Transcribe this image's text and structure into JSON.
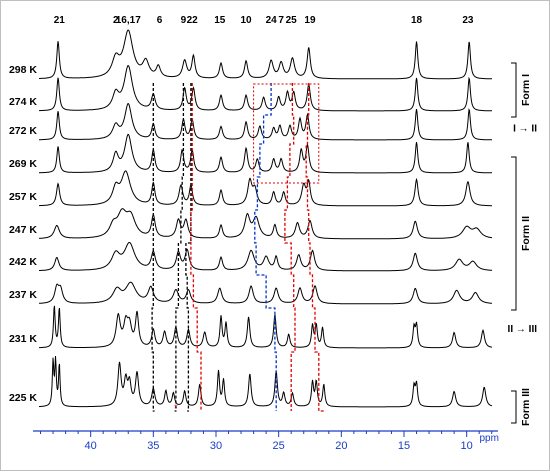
{
  "chart_data": {
    "type": "line",
    "title": "",
    "xlabel": "ppm",
    "xlim": [
      44.6,
      7.5
    ],
    "x_ticks": [
      40,
      35,
      30,
      25,
      20,
      15,
      10
    ],
    "x_tick_labels": [
      "40",
      "35",
      "30",
      "25",
      "20",
      "15",
      "10"
    ],
    "grid": false,
    "legend": "none",
    "peak_labels": [
      {
        "text": "21",
        "ppm": 42.5
      },
      {
        "text": "2",
        "ppm": 38.0
      },
      {
        "text": "16,17",
        "ppm": 37.0
      },
      {
        "text": "6",
        "ppm": 34.5
      },
      {
        "text": "9",
        "ppm": 32.6
      },
      {
        "text": "22",
        "ppm": 31.9
      },
      {
        "text": "15",
        "ppm": 29.7
      },
      {
        "text": "10",
        "ppm": 27.6
      },
      {
        "text": "24",
        "ppm": 25.6
      },
      {
        "text": "7",
        "ppm": 24.8
      },
      {
        "text": "25",
        "ppm": 24.0
      },
      {
        "text": "19",
        "ppm": 22.5
      },
      {
        "text": "18",
        "ppm": 14.0
      },
      {
        "text": "23",
        "ppm": 9.9
      }
    ],
    "series": [
      {
        "name": "298 K",
        "peaks": [
          [
            42.6,
            0.85,
            0.12
          ],
          [
            38.0,
            0.4,
            0.35
          ],
          [
            37.0,
            1.05,
            0.45
          ],
          [
            35.6,
            0.35,
            0.3
          ],
          [
            34.6,
            0.25,
            0.2
          ],
          [
            32.5,
            0.4,
            0.2
          ],
          [
            31.8,
            0.5,
            0.15
          ],
          [
            29.6,
            0.35,
            0.15
          ],
          [
            27.6,
            0.4,
            0.15
          ],
          [
            25.6,
            0.4,
            0.2
          ],
          [
            24.8,
            0.35,
            0.2
          ],
          [
            23.9,
            0.45,
            0.2
          ],
          [
            22.6,
            0.7,
            0.15
          ],
          [
            14.0,
            0.85,
            0.12
          ],
          [
            9.8,
            0.85,
            0.12
          ]
        ]
      },
      {
        "name": "274 K",
        "peaks": [
          [
            42.6,
            0.75,
            0.12
          ],
          [
            38.0,
            0.35,
            0.3
          ],
          [
            37.0,
            1.0,
            0.4
          ],
          [
            35.0,
            0.35,
            0.18
          ],
          [
            32.5,
            0.5,
            0.15
          ],
          [
            31.8,
            0.5,
            0.15
          ],
          [
            29.6,
            0.35,
            0.15
          ],
          [
            27.6,
            0.35,
            0.15
          ],
          [
            26.2,
            0.3,
            0.15
          ],
          [
            25.0,
            0.3,
            0.15
          ],
          [
            24.3,
            0.4,
            0.15
          ],
          [
            23.8,
            0.4,
            0.15
          ],
          [
            22.6,
            0.6,
            0.15
          ],
          [
            14.0,
            0.75,
            0.12
          ],
          [
            9.8,
            0.75,
            0.12
          ]
        ]
      },
      {
        "name": "272 K",
        "peaks": [
          [
            42.6,
            0.65,
            0.12
          ],
          [
            38.0,
            0.3,
            0.3
          ],
          [
            37.0,
            0.8,
            0.35
          ],
          [
            35.0,
            0.35,
            0.15
          ],
          [
            32.6,
            0.45,
            0.15
          ],
          [
            31.9,
            0.45,
            0.15
          ],
          [
            29.6,
            0.3,
            0.15
          ],
          [
            27.6,
            0.4,
            0.15
          ],
          [
            26.5,
            0.3,
            0.15
          ],
          [
            25.4,
            0.25,
            0.15
          ],
          [
            24.9,
            0.3,
            0.15
          ],
          [
            24.1,
            0.3,
            0.15
          ],
          [
            23.3,
            0.45,
            0.15
          ],
          [
            22.7,
            0.55,
            0.15
          ],
          [
            14.0,
            0.7,
            0.12
          ],
          [
            9.8,
            0.7,
            0.12
          ]
        ]
      },
      {
        "name": "269 K",
        "peaks": [
          [
            42.6,
            0.6,
            0.12
          ],
          [
            38.0,
            0.4,
            0.25
          ],
          [
            37.0,
            0.85,
            0.35
          ],
          [
            35.0,
            0.5,
            0.15
          ],
          [
            32.7,
            0.5,
            0.15
          ],
          [
            31.9,
            0.5,
            0.15
          ],
          [
            29.6,
            0.35,
            0.15
          ],
          [
            27.6,
            0.55,
            0.15
          ],
          [
            26.7,
            0.3,
            0.15
          ],
          [
            25.4,
            0.3,
            0.15
          ],
          [
            24.8,
            0.3,
            0.15
          ],
          [
            23.2,
            0.5,
            0.15
          ],
          [
            22.7,
            0.6,
            0.15
          ],
          [
            14.0,
            0.7,
            0.12
          ],
          [
            9.9,
            0.7,
            0.12
          ]
        ]
      },
      {
        "name": "257 K",
        "peaks": [
          [
            42.6,
            0.5,
            0.15
          ],
          [
            38.0,
            0.35,
            0.3
          ],
          [
            37.2,
            0.75,
            0.45
          ],
          [
            35.0,
            0.5,
            0.15
          ],
          [
            32.8,
            0.45,
            0.18
          ],
          [
            32.0,
            0.45,
            0.15
          ],
          [
            29.6,
            0.35,
            0.15
          ],
          [
            27.3,
            0.55,
            0.2
          ],
          [
            26.9,
            0.35,
            0.2
          ],
          [
            25.4,
            0.3,
            0.15
          ],
          [
            24.6,
            0.3,
            0.15
          ],
          [
            23.0,
            0.45,
            0.2
          ],
          [
            22.6,
            0.5,
            0.15
          ],
          [
            14.0,
            0.6,
            0.15
          ],
          [
            9.9,
            0.55,
            0.2
          ]
        ]
      },
      {
        "name": "247 K",
        "peaks": [
          [
            42.7,
            0.3,
            0.25
          ],
          [
            38.2,
            0.25,
            0.35
          ],
          [
            37.5,
            0.5,
            0.45
          ],
          [
            36.8,
            0.45,
            0.45
          ],
          [
            35.0,
            0.5,
            0.18
          ],
          [
            33.0,
            0.4,
            0.2
          ],
          [
            32.4,
            0.4,
            0.2
          ],
          [
            29.6,
            0.3,
            0.15
          ],
          [
            27.5,
            0.5,
            0.25
          ],
          [
            26.8,
            0.45,
            0.3
          ],
          [
            25.3,
            0.3,
            0.15
          ],
          [
            23.5,
            0.35,
            0.2
          ],
          [
            22.5,
            0.4,
            0.2
          ],
          [
            14.1,
            0.4,
            0.2
          ],
          [
            10.0,
            0.25,
            0.4
          ],
          [
            9.2,
            0.2,
            0.4
          ]
        ]
      },
      {
        "name": "242 K",
        "peaks": [
          [
            42.7,
            0.3,
            0.2
          ],
          [
            38.0,
            0.35,
            0.4
          ],
          [
            36.9,
            0.6,
            0.5
          ],
          [
            35.0,
            0.4,
            0.2
          ],
          [
            33.0,
            0.4,
            0.2
          ],
          [
            32.3,
            0.45,
            0.2
          ],
          [
            29.6,
            0.3,
            0.15
          ],
          [
            27.2,
            0.45,
            0.3
          ],
          [
            26.0,
            0.3,
            0.25
          ],
          [
            25.2,
            0.3,
            0.15
          ],
          [
            23.4,
            0.35,
            0.2
          ],
          [
            22.3,
            0.45,
            0.2
          ],
          [
            14.1,
            0.4,
            0.2
          ],
          [
            10.6,
            0.25,
            0.35
          ],
          [
            9.5,
            0.2,
            0.35
          ]
        ]
      },
      {
        "name": "237 K",
        "peaks": [
          [
            42.7,
            0.35,
            0.2
          ],
          [
            42.4,
            0.3,
            0.2
          ],
          [
            37.9,
            0.3,
            0.4
          ],
          [
            36.8,
            0.45,
            0.5
          ],
          [
            35.2,
            0.35,
            0.25
          ],
          [
            33.2,
            0.3,
            0.25
          ],
          [
            32.2,
            0.3,
            0.2
          ],
          [
            29.7,
            0.35,
            0.2
          ],
          [
            27.2,
            0.4,
            0.2
          ],
          [
            25.2,
            0.35,
            0.2
          ],
          [
            23.3,
            0.35,
            0.2
          ],
          [
            22.1,
            0.4,
            0.2
          ],
          [
            14.1,
            0.35,
            0.2
          ],
          [
            10.8,
            0.3,
            0.3
          ],
          [
            9.3,
            0.25,
            0.3
          ]
        ]
      },
      {
        "name": "231 K",
        "peaks": [
          [
            42.9,
            0.95,
            0.08
          ],
          [
            42.5,
            0.9,
            0.08
          ],
          [
            37.8,
            0.7,
            0.2
          ],
          [
            37.2,
            0.5,
            0.2
          ],
          [
            36.9,
            0.45,
            0.2
          ],
          [
            36.3,
            0.75,
            0.15
          ],
          [
            35.0,
            0.4,
            0.15
          ],
          [
            34.1,
            0.35,
            0.15
          ],
          [
            33.2,
            0.45,
            0.15
          ],
          [
            32.2,
            0.4,
            0.15
          ],
          [
            30.9,
            0.35,
            0.15
          ],
          [
            29.6,
            0.7,
            0.1
          ],
          [
            29.2,
            0.55,
            0.1
          ],
          [
            27.4,
            0.7,
            0.12
          ],
          [
            25.3,
            0.75,
            0.12
          ],
          [
            24.2,
            0.3,
            0.12
          ],
          [
            22.3,
            0.5,
            0.1
          ],
          [
            22.0,
            0.5,
            0.1
          ],
          [
            21.5,
            0.45,
            0.1
          ],
          [
            14.2,
            0.45,
            0.1
          ],
          [
            14.0,
            0.5,
            0.1
          ],
          [
            11.0,
            0.35,
            0.15
          ],
          [
            8.7,
            0.4,
            0.15
          ]
        ]
      },
      {
        "name": "225 K",
        "peaks": [
          [
            43.0,
            1.0,
            0.07
          ],
          [
            42.8,
            1.0,
            0.07
          ],
          [
            42.5,
            0.95,
            0.07
          ],
          [
            37.7,
            0.95,
            0.15
          ],
          [
            37.2,
            0.55,
            0.15
          ],
          [
            36.9,
            0.5,
            0.15
          ],
          [
            36.3,
            0.75,
            0.15
          ],
          [
            35.0,
            0.4,
            0.15
          ],
          [
            34.0,
            0.35,
            0.12
          ],
          [
            33.4,
            0.3,
            0.12
          ],
          [
            32.5,
            0.35,
            0.12
          ],
          [
            31.3,
            0.5,
            0.12
          ],
          [
            29.8,
            0.8,
            0.1
          ],
          [
            29.4,
            0.6,
            0.1
          ],
          [
            27.3,
            0.75,
            0.12
          ],
          [
            25.2,
            0.8,
            0.12
          ],
          [
            24.6,
            0.3,
            0.12
          ],
          [
            23.9,
            0.3,
            0.12
          ],
          [
            22.3,
            0.55,
            0.1
          ],
          [
            22.0,
            0.55,
            0.1
          ],
          [
            21.4,
            0.5,
            0.1
          ],
          [
            14.2,
            0.45,
            0.1
          ],
          [
            14.0,
            0.5,
            0.1
          ],
          [
            11.0,
            0.35,
            0.15
          ],
          [
            8.6,
            0.45,
            0.15
          ]
        ]
      }
    ],
    "phase_brackets": [
      {
        "label": "Form I",
        "from": 0,
        "to": 1
      },
      {
        "label": "Form II",
        "from": 3,
        "to": 7
      },
      {
        "label": "Form III",
        "from": 9,
        "to": 9
      }
    ],
    "transitions": [
      {
        "label": "I → II",
        "after": 2
      },
      {
        "label": "II → III",
        "after": 8
      }
    ],
    "colors": {
      "spectrum": "#000000",
      "axis": "#1a3cc8",
      "blue_guide": "#0033cc",
      "red_guide": "#e00000",
      "black_guide": "#000000"
    }
  }
}
